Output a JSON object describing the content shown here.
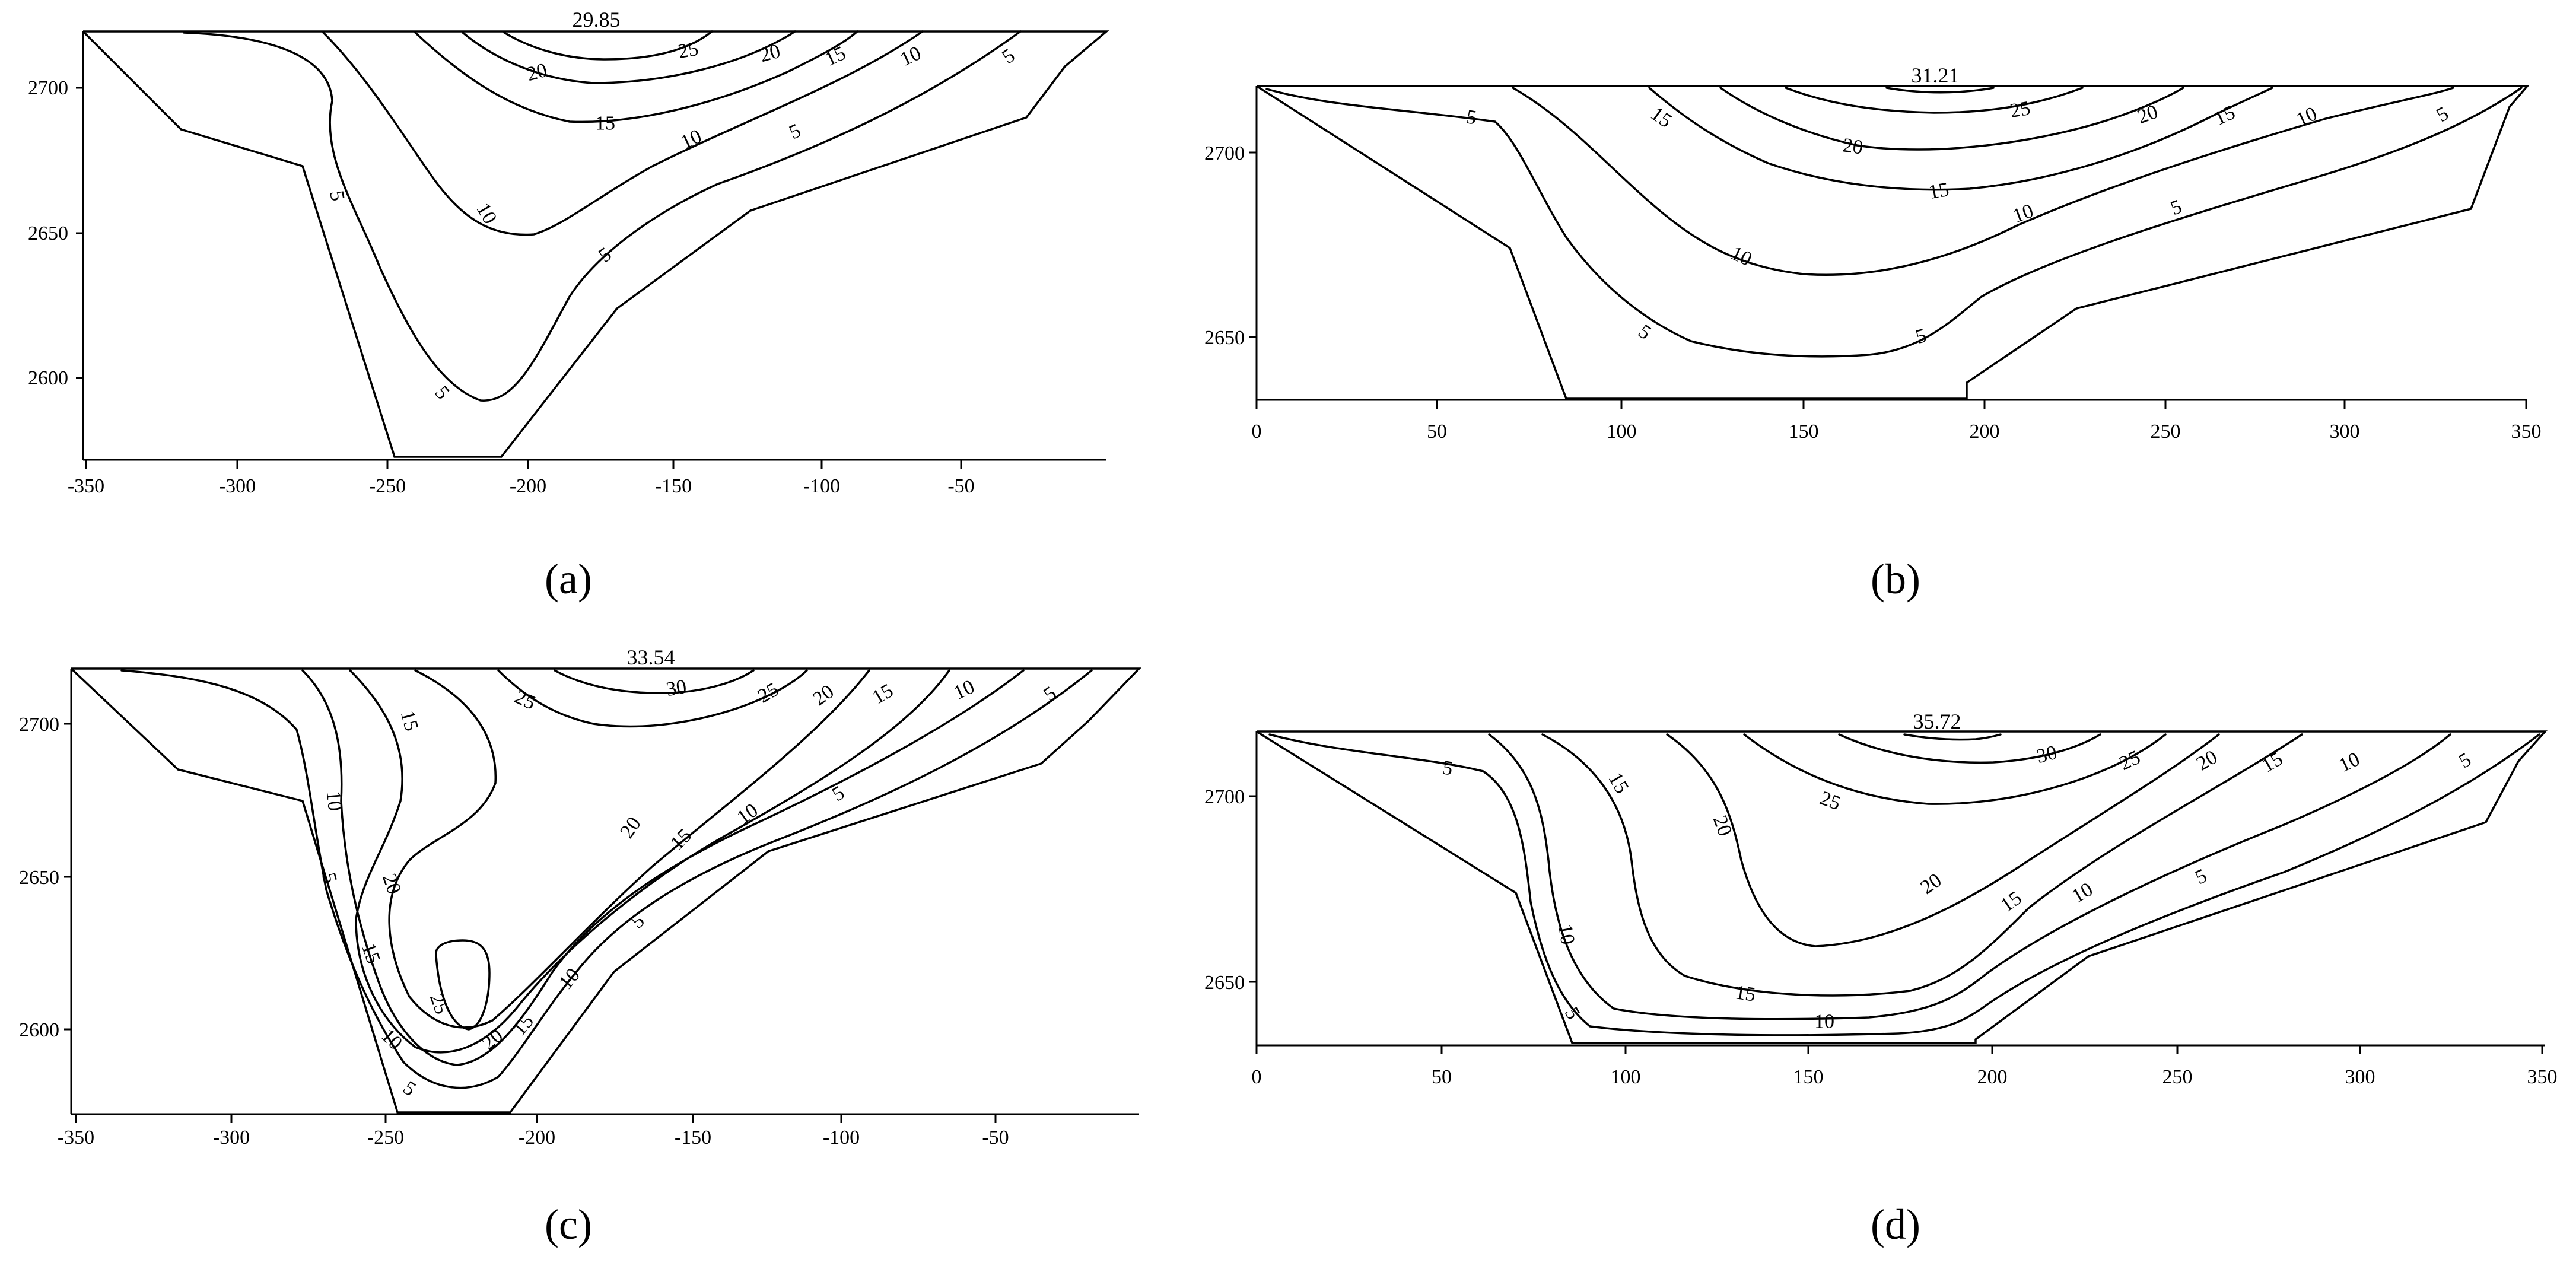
{
  "chart_data": [
    {
      "type": "contour",
      "panel_label": "(a)",
      "max_value": "29.85",
      "x_ticks": [
        "-350",
        "-300",
        "-250",
        "-200",
        "-150",
        "-100",
        "-50"
      ],
      "y_ticks": [
        "2600",
        "2650",
        "2700"
      ],
      "contour_levels": [
        5,
        10,
        15,
        20,
        25
      ]
    },
    {
      "type": "contour",
      "panel_label": "(b)",
      "max_value": "31.21",
      "x_ticks": [
        "0",
        "50",
        "100",
        "150",
        "200",
        "250",
        "300",
        "350"
      ],
      "y_ticks": [
        "2650",
        "2700"
      ],
      "contour_levels": [
        5,
        10,
        15,
        20,
        25
      ]
    },
    {
      "type": "contour",
      "panel_label": "(c)",
      "max_value": "33.54",
      "x_ticks": [
        "-350",
        "-300",
        "-250",
        "-200",
        "-150",
        "-100",
        "-50"
      ],
      "y_ticks": [
        "2600",
        "2650",
        "2700"
      ],
      "contour_levels": [
        5,
        10,
        15,
        20,
        25,
        30
      ]
    },
    {
      "type": "contour",
      "panel_label": "(d)",
      "max_value": "35.72",
      "x_ticks": [
        "0",
        "50",
        "100",
        "150",
        "200",
        "250",
        "300",
        "350"
      ],
      "y_ticks": [
        "2650",
        "2700"
      ],
      "contour_levels": [
        5,
        10,
        15,
        20,
        25,
        30
      ]
    }
  ]
}
